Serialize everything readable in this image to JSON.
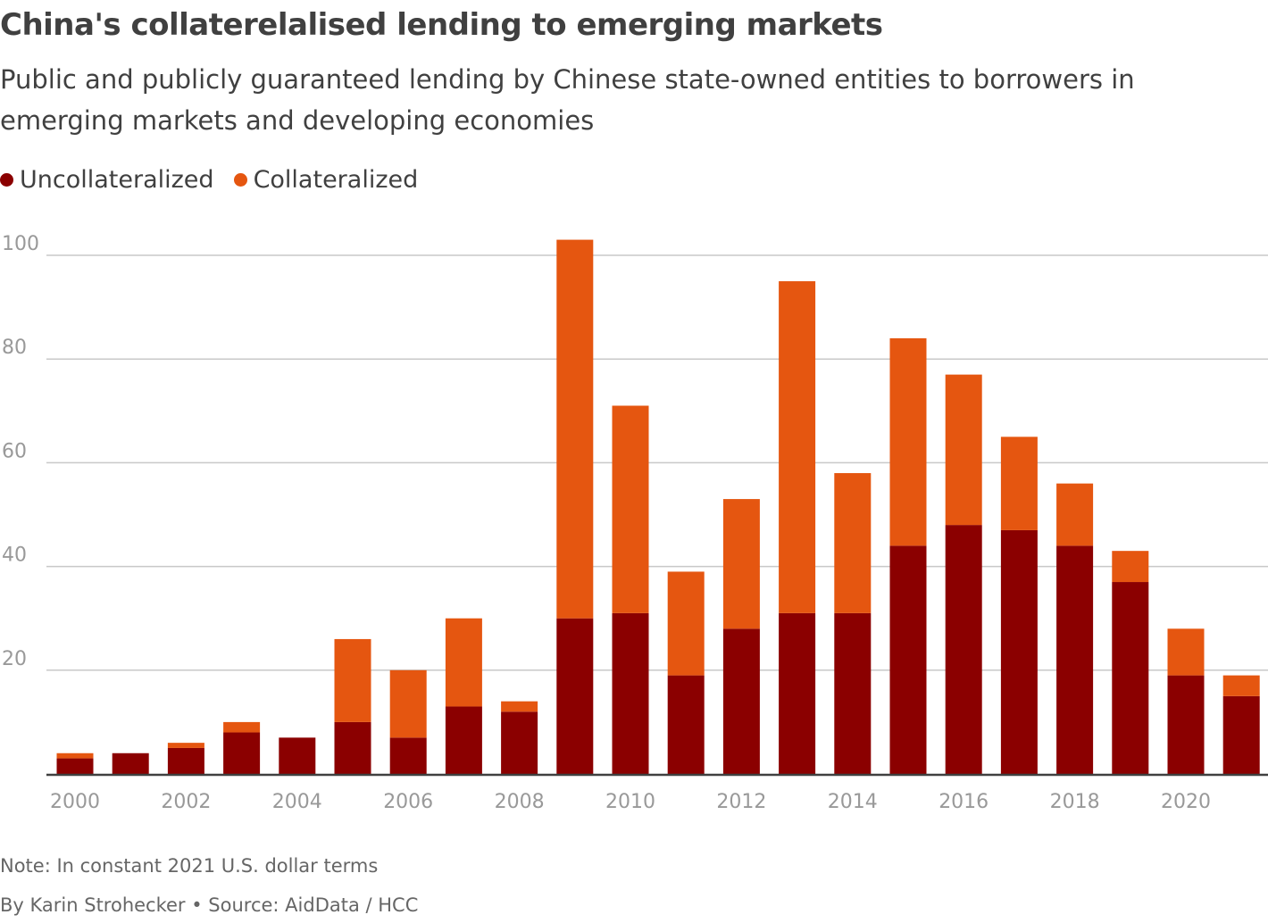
{
  "title": "China's collaterelalised lending to emerging markets",
  "subtitle": "Public and publicly guaranteed lending by Chinese state-owned entities to borrowers in emerging markets and developing economies",
  "note": "Note: In constant 2021 U.S. dollar terms",
  "byline": "By Karin Strohecker • Source: AidData / HCC",
  "chart_data": {
    "type": "bar",
    "stacked": true,
    "title": "China's collaterelalised lending to emerging markets",
    "xlabel": "",
    "ylabel": "",
    "ylim": [
      0,
      100
    ],
    "yticks": [
      20,
      40,
      60,
      80,
      100
    ],
    "grid": true,
    "legend_position": "top-left",
    "categories": [
      "2000",
      "2001",
      "2002",
      "2003",
      "2004",
      "2005",
      "2006",
      "2007",
      "2008",
      "2009",
      "2010",
      "2011",
      "2012",
      "2013",
      "2014",
      "2015",
      "2016",
      "2017",
      "2018",
      "2019",
      "2020",
      "2021"
    ],
    "xtick_labels": [
      "2000",
      "2002",
      "2004",
      "2006",
      "2008",
      "2010",
      "2012",
      "2014",
      "2016",
      "2018",
      "2020"
    ],
    "series": [
      {
        "name": "Uncollateralized",
        "color": "#8b0000",
        "values": [
          3,
          4,
          5,
          8,
          7,
          10,
          7,
          13,
          12,
          30,
          31,
          19,
          28,
          31,
          31,
          44,
          48,
          47,
          44,
          37,
          19,
          15
        ]
      },
      {
        "name": "Collateralized",
        "color": "#e55610",
        "values": [
          1,
          0,
          1,
          2,
          0,
          16,
          13,
          17,
          2,
          73,
          40,
          20,
          25,
          64,
          27,
          40,
          29,
          18,
          12,
          6,
          9,
          4
        ]
      }
    ]
  }
}
